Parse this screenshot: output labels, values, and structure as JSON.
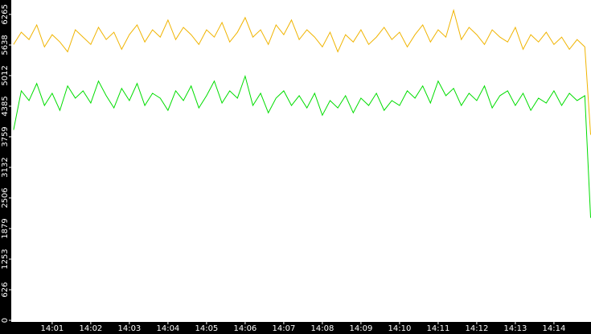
{
  "chart_data": {
    "type": "line",
    "x": [
      0,
      0.2,
      0.4,
      0.6,
      0.8,
      1,
      1.2,
      1.4,
      1.6,
      1.8,
      2,
      2.2,
      2.4,
      2.6,
      2.8,
      3,
      3.2,
      3.4,
      3.6,
      3.8,
      4,
      4.2,
      4.4,
      4.6,
      4.8,
      5,
      5.2,
      5.4,
      5.6,
      5.8,
      6,
      6.2,
      6.4,
      6.6,
      6.8,
      7,
      7.2,
      7.4,
      7.6,
      7.8,
      8,
      8.2,
      8.4,
      8.6,
      8.8,
      9,
      9.2,
      9.4,
      9.6,
      9.8,
      10,
      10.2,
      10.4,
      10.6,
      10.8,
      11,
      11.2,
      11.4,
      11.6,
      11.8,
      12,
      12.2,
      12.4,
      12.6,
      12.8,
      13,
      13.2,
      13.4,
      13.6,
      13.8,
      14,
      14.2,
      14.4,
      14.6,
      14.8,
      14.95
    ],
    "series": [
      {
        "color": "#f0b400",
        "values": [
          5650,
          5900,
          5750,
          6050,
          5600,
          5850,
          5700,
          5500,
          5950,
          5800,
          5650,
          6000,
          5750,
          5900,
          5550,
          5850,
          6050,
          5700,
          5950,
          5800,
          6150,
          5750,
          6000,
          5850,
          5650,
          5950,
          5800,
          6100,
          5700,
          5900,
          6200,
          5800,
          5950,
          5650,
          6050,
          5850,
          6150,
          5750,
          5950,
          5800,
          5600,
          5900,
          5500,
          5850,
          5700,
          5950,
          5650,
          5800,
          6000,
          5750,
          5900,
          5600,
          5850,
          6050,
          5700,
          5950,
          5800,
          6350,
          5750,
          6000,
          5850,
          5650,
          5950,
          5800,
          5700,
          6000,
          5550,
          5850,
          5700,
          5900,
          5650,
          5800,
          5550,
          5750,
          5600,
          3800
        ]
      },
      {
        "color": "#00dd00",
        "values": [
          3900,
          4700,
          4500,
          4850,
          4400,
          4650,
          4300,
          4800,
          4550,
          4700,
          4450,
          4900,
          4600,
          4350,
          4750,
          4500,
          4850,
          4400,
          4650,
          4550,
          4300,
          4700,
          4500,
          4800,
          4350,
          4600,
          4900,
          4450,
          4700,
          4550,
          5000,
          4400,
          4650,
          4250,
          4550,
          4700,
          4400,
          4600,
          4350,
          4650,
          4200,
          4500,
          4350,
          4600,
          4250,
          4550,
          4400,
          4650,
          4300,
          4500,
          4400,
          4700,
          4550,
          4800,
          4450,
          4900,
          4600,
          4750,
          4400,
          4650,
          4500,
          4800,
          4350,
          4600,
          4700,
          4400,
          4650,
          4300,
          4550,
          4450,
          4700,
          4400,
          4650,
          4500,
          4600,
          2100
        ]
      }
    ],
    "xlim": [
      -0.06,
      14.96
    ],
    "xticks": [
      {
        "value": 1,
        "label": "14:01"
      },
      {
        "value": 2,
        "label": "14:02"
      },
      {
        "value": 3,
        "label": "14:03"
      },
      {
        "value": 4,
        "label": "14:04"
      },
      {
        "value": 5,
        "label": "14:05"
      },
      {
        "value": 6,
        "label": "14:06"
      },
      {
        "value": 7,
        "label": "14:07"
      },
      {
        "value": 8,
        "label": "14:08"
      },
      {
        "value": 9,
        "label": "14:09"
      },
      {
        "value": 10,
        "label": "14:10"
      },
      {
        "value": 11,
        "label": "14:11"
      },
      {
        "value": 12,
        "label": "14:12"
      },
      {
        "value": 13,
        "label": "14:13"
      },
      {
        "value": 14,
        "label": "14:14"
      }
    ],
    "ylim": [
      0,
      6560
    ],
    "yticks": [
      0,
      626,
      1253,
      1879,
      2506,
      3132,
      3759,
      4385,
      5012,
      5638,
      6265
    ]
  }
}
